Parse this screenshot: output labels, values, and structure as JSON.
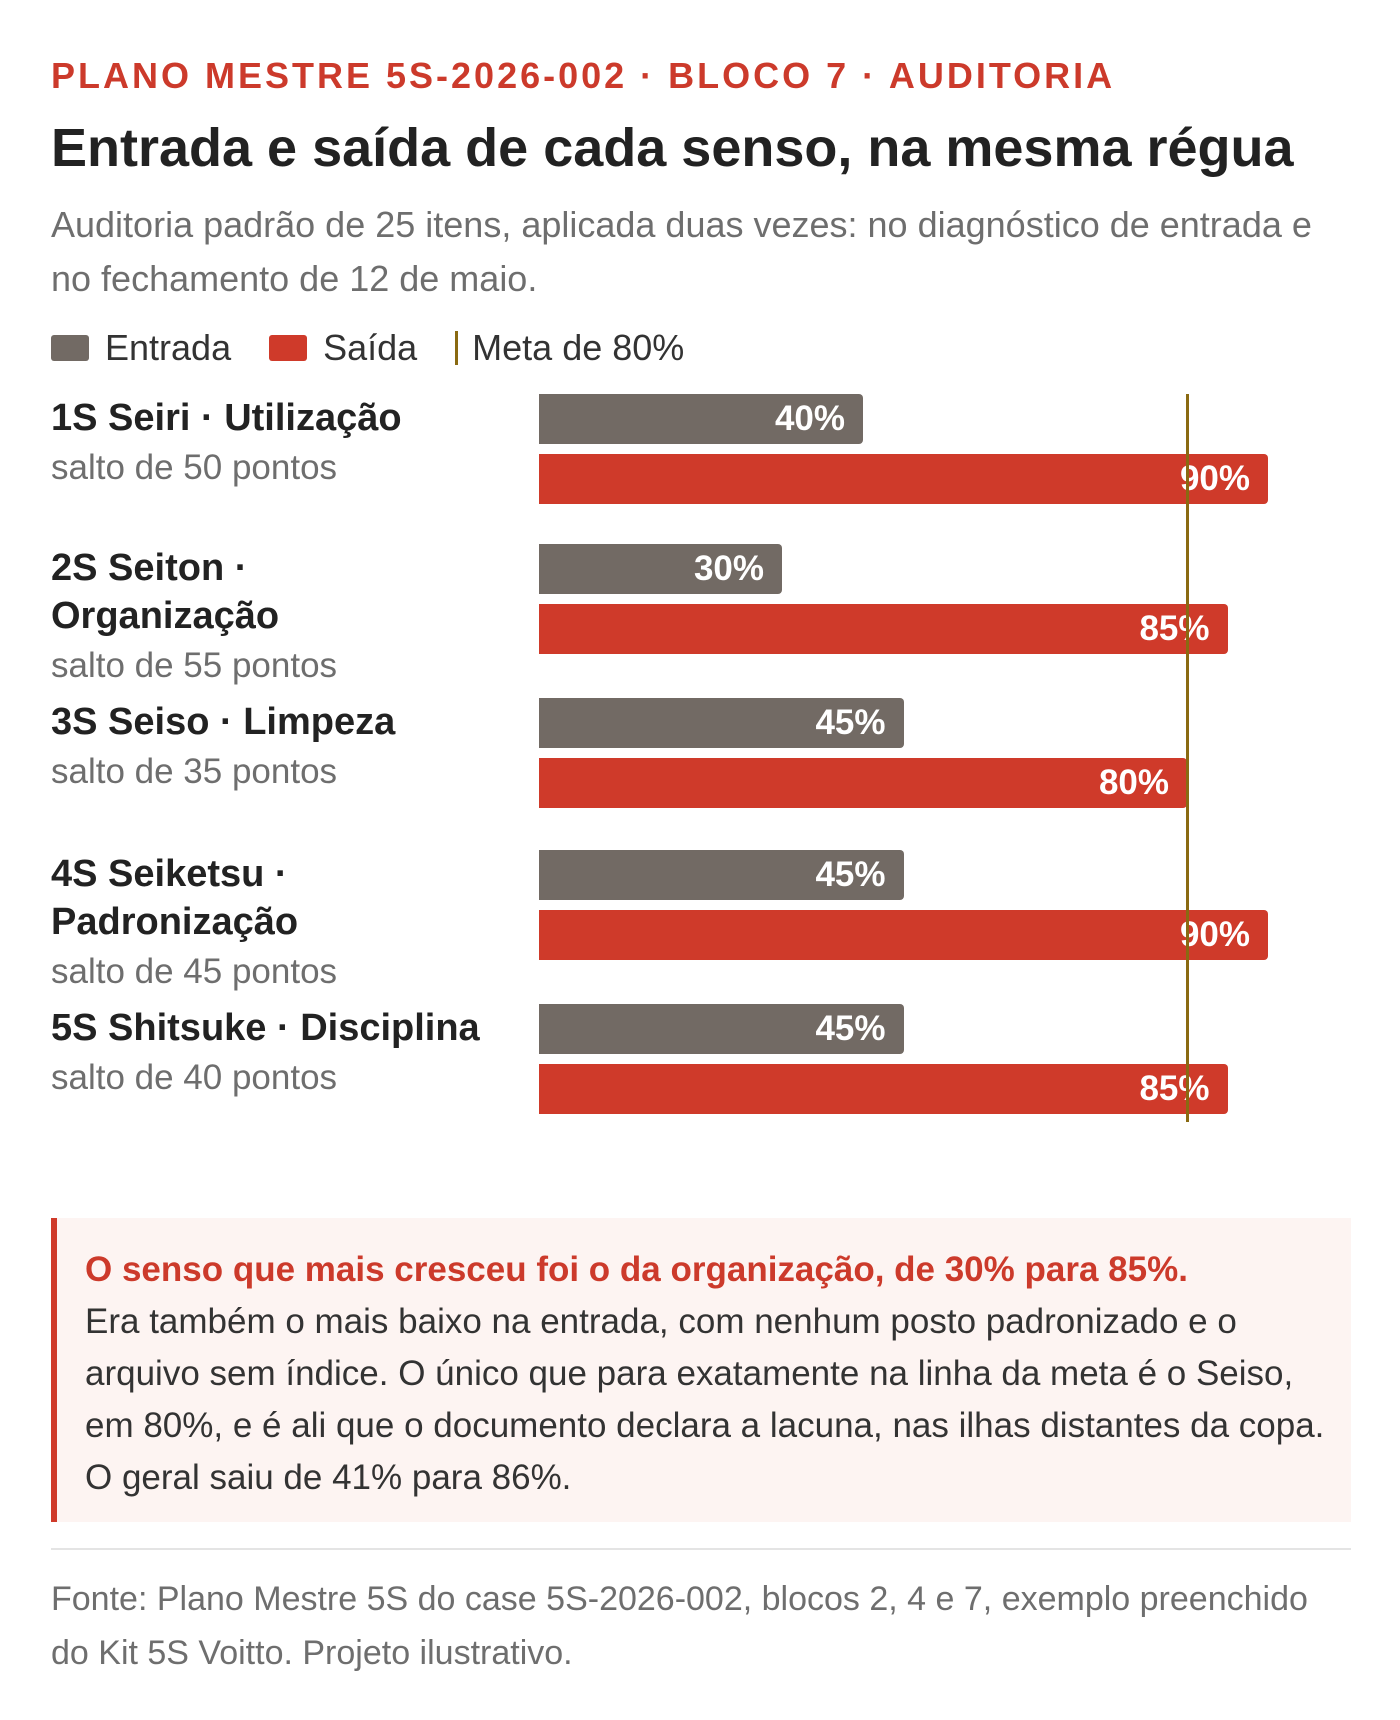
{
  "header": {
    "eyebrow": "PLANO MESTRE 5S-2026-002 · BLOCO 7 · AUDITORIA",
    "title": "Entrada e saída de cada senso, na mesma régua",
    "subtitle": "Auditoria padrão de 25 itens, aplicada duas vezes: no diagnóstico de entrada e no fechamento de 12 de maio."
  },
  "legend": {
    "entrada": "Entrada",
    "saida": "Saída",
    "meta": "Meta de 80%"
  },
  "colors": {
    "accent": "#cc3a2b",
    "entrada": "#726a64",
    "saida": "#cf3a2a",
    "meta": "#8a6a12",
    "callout_bg": "#fdf4f2"
  },
  "chart_data": {
    "type": "bar",
    "orientation": "horizontal",
    "xlim": [
      0,
      100
    ],
    "target": 80,
    "categories": [
      "1S Seiri · Utilização",
      "2S Seiton · Organização",
      "3S Seiso · Limpeza",
      "4S Seiketsu · Padronização",
      "5S Shitsuke · Disciplina"
    ],
    "notes": [
      "salto de 50 pontos",
      "salto de 55 pontos",
      "salto de 35 pontos",
      "salto de 45 pontos",
      "salto de 40 pontos"
    ],
    "series": [
      {
        "name": "Entrada",
        "values": [
          40,
          30,
          45,
          45,
          45
        ]
      },
      {
        "name": "Saída",
        "values": [
          90,
          85,
          80,
          90,
          85
        ]
      }
    ]
  },
  "callout": {
    "lead": "O senso que mais cresceu foi o da organização, de 30% para 85%.",
    "body": "Era também o mais baixo na entrada, com nenhum posto padronizado e o arquivo sem índice. O único que para exatamente na linha da meta é o Seiso, em 80%, e é ali que o documento declara a lacuna, nas ilhas distantes da copa. O geral saiu de 41% para 86%."
  },
  "footer": {
    "source": "Fonte: Plano Mestre 5S do case 5S-2026-002, blocos 2, 4 e 7, exemplo preenchido do Kit 5S Voitto. Projeto ilustrativo."
  }
}
